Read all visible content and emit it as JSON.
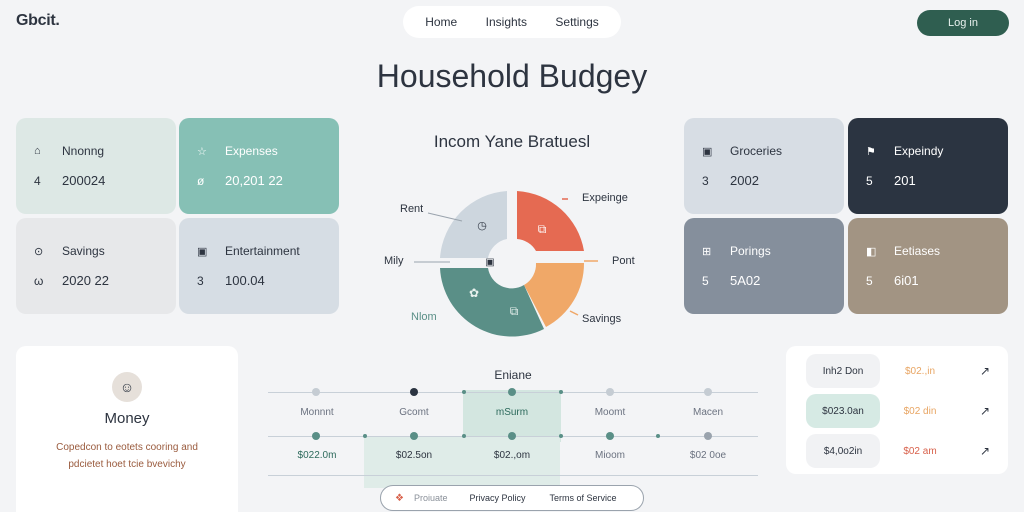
{
  "header": {
    "logo": "Gbcit.",
    "nav": [
      "Home",
      "Insights",
      "Settings"
    ],
    "login": "Log in"
  },
  "page_title": "Household Budgey",
  "left_cards": [
    {
      "label": "Nnonng",
      "icon": "home-icon",
      "num": "4",
      "value": "200024"
    },
    {
      "label": "Expenses",
      "icon": "star-icon",
      "num": "ø",
      "value": "20,201 22"
    },
    {
      "label": "Savings",
      "icon": "clock-icon",
      "num": "ω",
      "value": "2020 22"
    },
    {
      "label": "Entertainment",
      "icon": "bag-icon",
      "num": "3",
      "value": "100.04"
    }
  ],
  "right_cards": [
    {
      "label": "Groceries",
      "icon": "bag-icon",
      "num": "3",
      "value": "2002"
    },
    {
      "label": "Expeindy",
      "icon": "flag-icon",
      "num": "5",
      "value": "201"
    },
    {
      "label": "Porings",
      "icon": "grid-icon",
      "num": "5",
      "value": "5A02"
    },
    {
      "label": "Eetiases",
      "icon": "pin-icon",
      "num": "5",
      "value": "6i01"
    }
  ],
  "chart": {
    "title": "Incom Yane Bratuesl",
    "labels": {
      "rent": "Rent",
      "expeinge": "Expeinge",
      "mily": "Mily",
      "pont": "Pont",
      "nlom": "Nlom",
      "savings": "Savings"
    }
  },
  "chart_data": {
    "type": "pie",
    "title": "Incom Yane Bratuesl",
    "categories": [
      "Rent",
      "Expeinge",
      "Pont",
      "Nlom",
      "Mily"
    ],
    "values": [
      20,
      25,
      20,
      22,
      13
    ],
    "colors": [
      "#cdd6de",
      "#e56a52",
      "#f0a868",
      "#5a8f87",
      "#5a8f87"
    ]
  },
  "profile": {
    "title": "Money",
    "desc": "Copedcon to eotets cooring and pdcietet hoet tcie bvevichy"
  },
  "timeline": {
    "title": "Eniane",
    "labels": [
      "Monnnt",
      "Gcomt",
      "mSurm",
      "Moomt",
      "Macen"
    ],
    "values": [
      "$022.0m",
      "$02.5on",
      "$02.,om",
      "Mioom",
      "$02 0oe"
    ]
  },
  "footer": {
    "brand": "Proiuate",
    "privacy": "Privacy Policy",
    "terms": "Terms of Service"
  },
  "right_list": [
    {
      "pill": "Inh2 Don",
      "amount": "$02.,in",
      "amount_color": "#e8a563",
      "pill_bg": "#f1f2f4"
    },
    {
      "pill": "$023.0an",
      "amount": "$02 din",
      "amount_color": "#e8a563",
      "pill_bg": "#d6eae4"
    },
    {
      "pill": "$4,0o2in",
      "amount": "$02 am",
      "amount_color": "#d8614b",
      "pill_bg": "#f1f2f4"
    }
  ]
}
